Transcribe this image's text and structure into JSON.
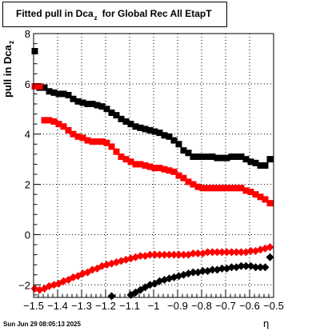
{
  "title": {
    "main": "Fitted pull in Dca",
    "sub": "z",
    "rest": "for Global Rec All EtapT"
  },
  "timestamp": "Sun Jun 29 08:05:13 2025",
  "colors": {
    "black_series": "#000000",
    "red_series": "#ff0000",
    "frame": "#000000"
  },
  "chart_data": {
    "type": "scatter",
    "title": "Fitted pull in Dca_z for Global Rec All EtapT",
    "xlabel": "η",
    "ylabel": "pull in Dca",
    "ylabel_sub": "z",
    "xlim": [
      -1.5,
      -0.5
    ],
    "ylim": [
      -2.5,
      8.0
    ],
    "x_ticks": [
      -1.5,
      -1.4,
      -1.3,
      -1.2,
      -1.1,
      -1.0,
      -0.9,
      -0.8,
      -0.7,
      -0.6,
      -0.5
    ],
    "x_tick_labels": [
      "−1.5",
      "−1.4",
      "−1.3",
      "−1.2",
      "−1.1",
      "−1",
      "−0.9",
      "−0.8",
      "−0.7",
      "−0.6",
      "−0.5"
    ],
    "y_ticks": [
      -2,
      0,
      2,
      4,
      6,
      8
    ],
    "y_tick_labels": [
      "−2",
      "0",
      "2",
      "4",
      "6",
      "8"
    ],
    "grid": true,
    "series": [
      {
        "marker": "square",
        "color": "#000000",
        "x": [
          -1.495,
          -1.475,
          -1.455,
          -1.435,
          -1.415,
          -1.395,
          -1.375,
          -1.355,
          -1.335,
          -1.315,
          -1.295,
          -1.275,
          -1.255,
          -1.235,
          -1.215,
          -1.195,
          -1.175,
          -1.155,
          -1.135,
          -1.115,
          -1.095,
          -1.075,
          -1.055,
          -1.035,
          -1.015,
          -0.995,
          -0.975,
          -0.955,
          -0.935,
          -0.915,
          -0.895,
          -0.875,
          -0.855,
          -0.835,
          -0.815,
          -0.795,
          -0.775,
          -0.755,
          -0.735,
          -0.715,
          -0.695,
          -0.675,
          -0.655,
          -0.635,
          -0.615,
          -0.595,
          -0.575,
          -0.555,
          -0.535,
          -0.515
        ],
        "y": [
          7.3,
          5.85,
          5.85,
          5.7,
          5.65,
          5.6,
          5.6,
          5.55,
          5.4,
          5.3,
          5.25,
          5.2,
          5.2,
          5.15,
          5.1,
          5.0,
          4.85,
          4.75,
          4.6,
          4.5,
          4.4,
          4.3,
          4.25,
          4.2,
          4.15,
          4.1,
          4.05,
          3.95,
          3.9,
          3.75,
          3.6,
          3.35,
          3.25,
          3.1,
          3.1,
          3.1,
          3.1,
          3.1,
          3.05,
          3.05,
          3.05,
          3.1,
          3.1,
          3.1,
          3.0,
          2.9,
          2.85,
          2.75,
          2.75,
          3.0
        ]
      },
      {
        "marker": "square",
        "color": "#ff0000",
        "x": [
          -1.495,
          -1.475,
          -1.455,
          -1.435,
          -1.415,
          -1.395,
          -1.375,
          -1.355,
          -1.335,
          -1.315,
          -1.295,
          -1.275,
          -1.255,
          -1.235,
          -1.215,
          -1.195,
          -1.175,
          -1.155,
          -1.135,
          -1.115,
          -1.095,
          -1.075,
          -1.055,
          -1.035,
          -1.015,
          -0.995,
          -0.975,
          -0.955,
          -0.935,
          -0.915,
          -0.895,
          -0.875,
          -0.855,
          -0.835,
          -0.815,
          -0.795,
          -0.775,
          -0.755,
          -0.735,
          -0.715,
          -0.695,
          -0.675,
          -0.655,
          -0.635,
          -0.615,
          -0.595,
          -0.575,
          -0.555,
          -0.535,
          -0.515
        ],
        "y": [
          5.9,
          5.9,
          4.55,
          4.55,
          4.5,
          4.4,
          4.3,
          4.15,
          4.0,
          3.9,
          3.85,
          3.75,
          3.7,
          3.7,
          3.7,
          3.65,
          3.5,
          3.3,
          3.1,
          3.0,
          2.9,
          2.8,
          2.8,
          2.75,
          2.7,
          2.65,
          2.65,
          2.6,
          2.55,
          2.5,
          2.35,
          2.25,
          2.1,
          2.0,
          1.9,
          1.85,
          1.85,
          1.85,
          1.85,
          1.85,
          1.85,
          1.85,
          1.85,
          1.85,
          1.75,
          1.7,
          1.6,
          1.5,
          1.4,
          1.25
        ]
      },
      {
        "marker": "diamond",
        "color": "#ff0000",
        "x": [
          -1.495,
          -1.475,
          -1.455,
          -1.435,
          -1.415,
          -1.395,
          -1.375,
          -1.355,
          -1.335,
          -1.315,
          -1.295,
          -1.275,
          -1.255,
          -1.235,
          -1.215,
          -1.195,
          -1.175,
          -1.155,
          -1.135,
          -1.115,
          -1.095,
          -1.075,
          -1.055,
          -1.035,
          -1.015,
          -0.995,
          -0.975,
          -0.955,
          -0.935,
          -0.915,
          -0.895,
          -0.875,
          -0.855,
          -0.835,
          -0.815,
          -0.795,
          -0.775,
          -0.755,
          -0.735,
          -0.715,
          -0.695,
          -0.675,
          -0.655,
          -0.635,
          -0.615,
          -0.595,
          -0.575,
          -0.555,
          -0.535,
          -0.515
        ],
        "y": [
          -2.15,
          -2.2,
          -2.15,
          -2.05,
          -2.0,
          -1.95,
          -1.85,
          -1.8,
          -1.7,
          -1.65,
          -1.55,
          -1.5,
          -1.4,
          -1.35,
          -1.25,
          -1.2,
          -1.15,
          -1.1,
          -1.05,
          -1.0,
          -0.95,
          -0.9,
          -0.85,
          -0.85,
          -0.8,
          -0.8,
          -0.8,
          -0.8,
          -0.8,
          -0.8,
          -0.8,
          -0.8,
          -0.8,
          -0.75,
          -0.75,
          -0.75,
          -0.7,
          -0.7,
          -0.7,
          -0.7,
          -0.7,
          -0.7,
          -0.7,
          -0.7,
          -0.7,
          -0.65,
          -0.65,
          -0.6,
          -0.55,
          -0.5
        ]
      },
      {
        "marker": "diamond",
        "color": "#000000",
        "x": [
          -1.175,
          -1.095,
          -1.075,
          -1.055,
          -1.035,
          -1.015,
          -0.995,
          -0.975,
          -0.955,
          -0.935,
          -0.915,
          -0.895,
          -0.875,
          -0.855,
          -0.835,
          -0.815,
          -0.795,
          -0.775,
          -0.755,
          -0.735,
          -0.715,
          -0.695,
          -0.675,
          -0.655,
          -0.635,
          -0.615,
          -0.595,
          -0.575,
          -0.555,
          -0.535,
          -0.515
        ],
        "y": [
          -2.45,
          -2.4,
          -2.3,
          -2.2,
          -2.1,
          -2.0,
          -1.95,
          -1.85,
          -1.8,
          -1.75,
          -1.7,
          -1.65,
          -1.6,
          -1.55,
          -1.5,
          -1.5,
          -1.45,
          -1.45,
          -1.4,
          -1.4,
          -1.35,
          -1.35,
          -1.3,
          -1.3,
          -1.25,
          -1.25,
          -1.25,
          -1.3,
          -1.3,
          -1.3,
          -0.9
        ]
      }
    ]
  }
}
